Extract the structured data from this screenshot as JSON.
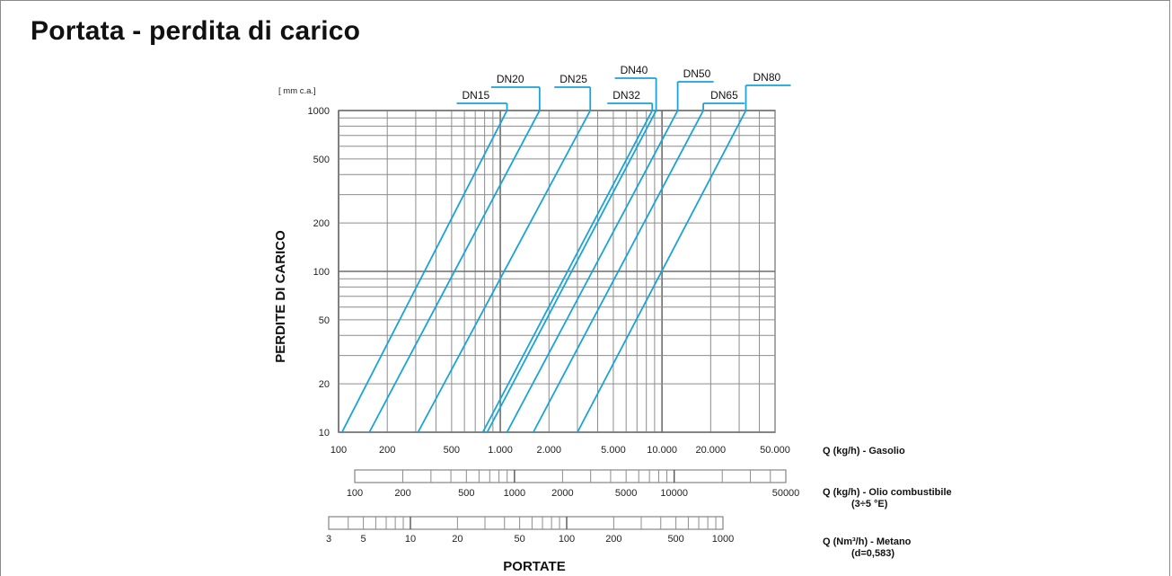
{
  "title": "Portata - perdita di carico",
  "chart_data": {
    "type": "line",
    "title": "Portata - perdita di carico",
    "xlabel": "PORTATE",
    "ylabel": "PERDITE DI CARICO",
    "y_unit": "[ mm c.a.]",
    "x_scale": "log",
    "y_scale": "log",
    "xlim": [
      100,
      50000
    ],
    "ylim": [
      10,
      1000
    ],
    "grid": true,
    "y_ticks": [
      {
        "value": 10,
        "label": "10"
      },
      {
        "value": 20,
        "label": "20"
      },
      {
        "value": 50,
        "label": "50"
      },
      {
        "value": 100,
        "label": "100"
      },
      {
        "value": 200,
        "label": "200"
      },
      {
        "value": 500,
        "label": "500"
      },
      {
        "value": 1000,
        "label": "1000"
      }
    ],
    "x_ticks": [
      {
        "value": 100,
        "label": "100"
      },
      {
        "value": 200,
        "label": "200"
      },
      {
        "value": 500,
        "label": "500"
      },
      {
        "value": 1000,
        "label": "1.000"
      },
      {
        "value": 2000,
        "label": "2.000"
      },
      {
        "value": 5000,
        "label": "5.000"
      },
      {
        "value": 10000,
        "label": "10.000"
      },
      {
        "value": 20000,
        "label": "20.000"
      },
      {
        "value": 50000,
        "label": "50.000"
      }
    ],
    "series": [
      {
        "name": "DN15",
        "x": [
          105,
          1100
        ],
        "y": [
          10,
          1000
        ]
      },
      {
        "name": "DN20",
        "x": [
          155,
          1750
        ],
        "y": [
          10,
          1000
        ]
      },
      {
        "name": "DN25",
        "x": [
          310,
          3600
        ],
        "y": [
          10,
          1000
        ]
      },
      {
        "name": "DN32",
        "x": [
          780,
          8700
        ],
        "y": [
          10,
          1000
        ]
      },
      {
        "name": "DN40",
        "x": [
          830,
          9200
        ],
        "y": [
          10,
          1000
        ]
      },
      {
        "name": "DN50",
        "x": [
          1100,
          12500
        ],
        "y": [
          10,
          1000
        ]
      },
      {
        "name": "DN65",
        "x": [
          1600,
          18000
        ],
        "y": [
          10,
          1000
        ]
      },
      {
        "name": "DN80",
        "x": [
          3000,
          33000
        ],
        "y": [
          10,
          1000
        ]
      }
    ],
    "secondary_scales": [
      {
        "caption": "Q (kg/h) - Gasolio",
        "caption_note": ""
      },
      {
        "caption": "Q (kg/h) - Olio combustibile",
        "caption_note": "(3÷5 °E)",
        "range": [
          100,
          50000
        ],
        "tick_labels": [
          {
            "value": 100,
            "label": "100"
          },
          {
            "value": 200,
            "label": "200"
          },
          {
            "value": 500,
            "label": "500"
          },
          {
            "value": 1000,
            "label": "1000"
          },
          {
            "value": 2000,
            "label": "2000"
          },
          {
            "value": 5000,
            "label": "5000"
          },
          {
            "value": 10000,
            "label": "10000"
          },
          {
            "value": 50000,
            "label": "50000"
          }
        ]
      },
      {
        "caption": "Q (Nm³/h) - Metano",
        "caption_note": "(d=0,583)",
        "range": [
          3,
          1000
        ],
        "tick_labels": [
          {
            "value": 3,
            "label": "3"
          },
          {
            "value": 5,
            "label": "5"
          },
          {
            "value": 10,
            "label": "10"
          },
          {
            "value": 20,
            "label": "20"
          },
          {
            "value": 50,
            "label": "50"
          },
          {
            "value": 100,
            "label": "100"
          },
          {
            "value": 200,
            "label": "200"
          },
          {
            "value": 500,
            "label": "500"
          },
          {
            "value": 1000,
            "label": "1000"
          }
        ]
      }
    ],
    "line_color": "#19a3d8"
  }
}
